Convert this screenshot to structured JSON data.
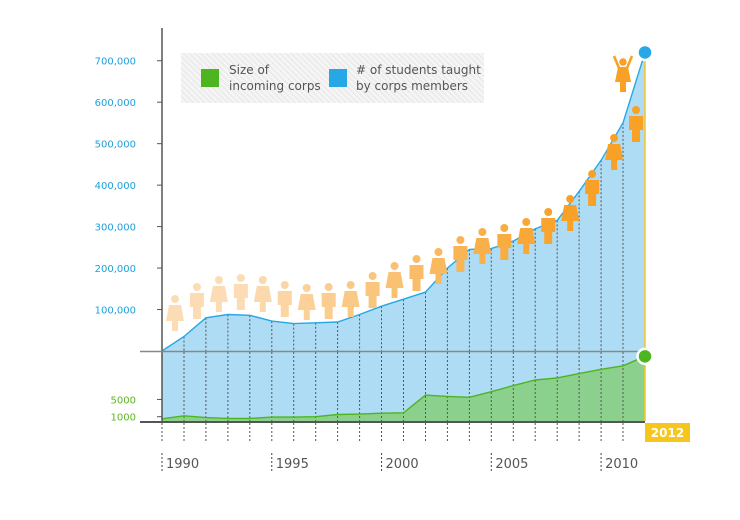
{
  "chart_data": {
    "type": "area",
    "title": "",
    "legend": [
      {
        "label": "Size of\nincoming corps",
        "color": "#4db51f"
      },
      {
        "label": "# of students taught\nby corps members",
        "color": "#26a7e6"
      }
    ],
    "x": [
      1989,
      1990,
      1991,
      1992,
      1993,
      1994,
      1995,
      1996,
      1997,
      1998,
      1999,
      2000,
      2001,
      2002,
      2003,
      2004,
      2005,
      2006,
      2007,
      2008,
      2009,
      2010,
      2011
    ],
    "series": [
      {
        "name": "# of students taught by corps members",
        "values": [
          0,
          35000,
          80000,
          88000,
          86000,
          72000,
          66000,
          68000,
          70000,
          88000,
          108000,
          125000,
          142000,
          200000,
          245000,
          247000,
          265000,
          295000,
          315000,
          385000,
          460000,
          550000,
          720000
        ],
        "color": "#26a7e6"
      },
      {
        "name": "Size of incoming corps",
        "values": [
          500,
          1200,
          800,
          600,
          600,
          900,
          900,
          1000,
          1500,
          1600,
          1800,
          1900,
          6000,
          5700,
          5500,
          6800,
          8200,
          9500,
          10000,
          11000,
          12000,
          12800,
          15000
        ],
        "color": "#4db51f"
      }
    ],
    "upper_axis_ticks": [
      "100,000",
      "200,000",
      "300,000",
      "400,000",
      "500,000",
      "600,000",
      "700,000"
    ],
    "upper_axis_values": [
      100000,
      200000,
      300000,
      400000,
      500000,
      600000,
      700000
    ],
    "lower_axis_ticks": [
      "1000",
      "5000"
    ],
    "lower_axis_values": [
      1000,
      5000
    ],
    "xtick_labels": [
      "1990",
      "1995",
      "2000",
      "2005",
      "2010"
    ],
    "xtick_years": [
      1989,
      1994,
      1999,
      2004,
      2009
    ],
    "end_label": "2012",
    "upper_ylim": [
      0,
      750000
    ],
    "lower_ylim": [
      0,
      16000
    ],
    "people_colors": {
      "light": "#fcdcb5",
      "dark": "#f8a126"
    },
    "colors": {
      "students_fill": "#aedcf5",
      "students_line": "#26a7e6",
      "corps_fill": "#8bd18d",
      "corps_line": "#4db51f",
      "end_marker": "#f7c51c",
      "axis": "#555555",
      "divider": "#888888",
      "upper_tick_text": "#1ea1dc",
      "lower_tick_text": "#5cb81f",
      "end_label_text": "#ffffff"
    }
  }
}
